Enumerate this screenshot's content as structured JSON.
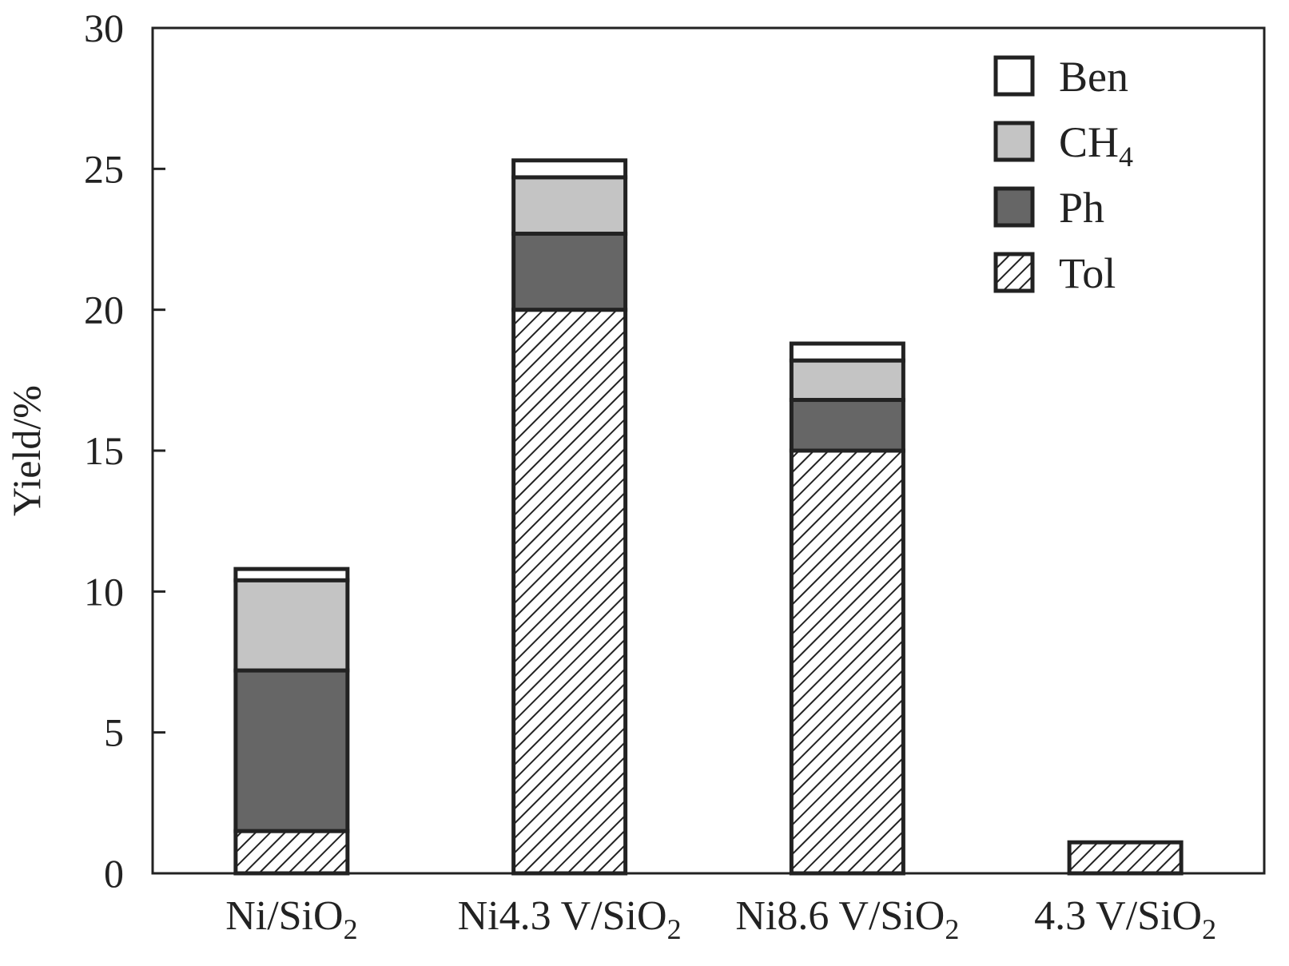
{
  "chart_data": {
    "type": "bar",
    "stacked": true,
    "ylabel": "Yield/%",
    "xlabel": "",
    "ylim": [
      0,
      30
    ],
    "yticks": [
      "0",
      "5",
      "10",
      "15",
      "20",
      "25",
      "30"
    ],
    "grid": false,
    "legend_position": "top-right",
    "categories": [
      {
        "text": "Ni/SiO",
        "sub": "2"
      },
      {
        "text": "Ni4.3 V/SiO",
        "sub": "2"
      },
      {
        "text": "Ni8.6 V/SiO",
        "sub": "2"
      },
      {
        "text": "4.3 V/SiO",
        "sub": "2"
      }
    ],
    "series": [
      {
        "name": "Tol",
        "fill": "hatch",
        "values": [
          1.5,
          20.0,
          15.0,
          1.1
        ]
      },
      {
        "name": "Ph",
        "fill": "#666666",
        "values": [
          5.7,
          2.7,
          1.8,
          0
        ]
      },
      {
        "name": "CH4",
        "fill": "#c4c4c4",
        "values": [
          3.2,
          2.0,
          1.4,
          0
        ]
      },
      {
        "name": "Ben",
        "fill": "#ffffff",
        "values": [
          0.4,
          0.6,
          0.6,
          0
        ]
      }
    ],
    "legend": [
      {
        "text": "Ben",
        "sub": ""
      },
      {
        "text": "CH",
        "sub": "4"
      },
      {
        "text": "Ph",
        "sub": ""
      },
      {
        "text": "Tol",
        "sub": ""
      }
    ]
  }
}
